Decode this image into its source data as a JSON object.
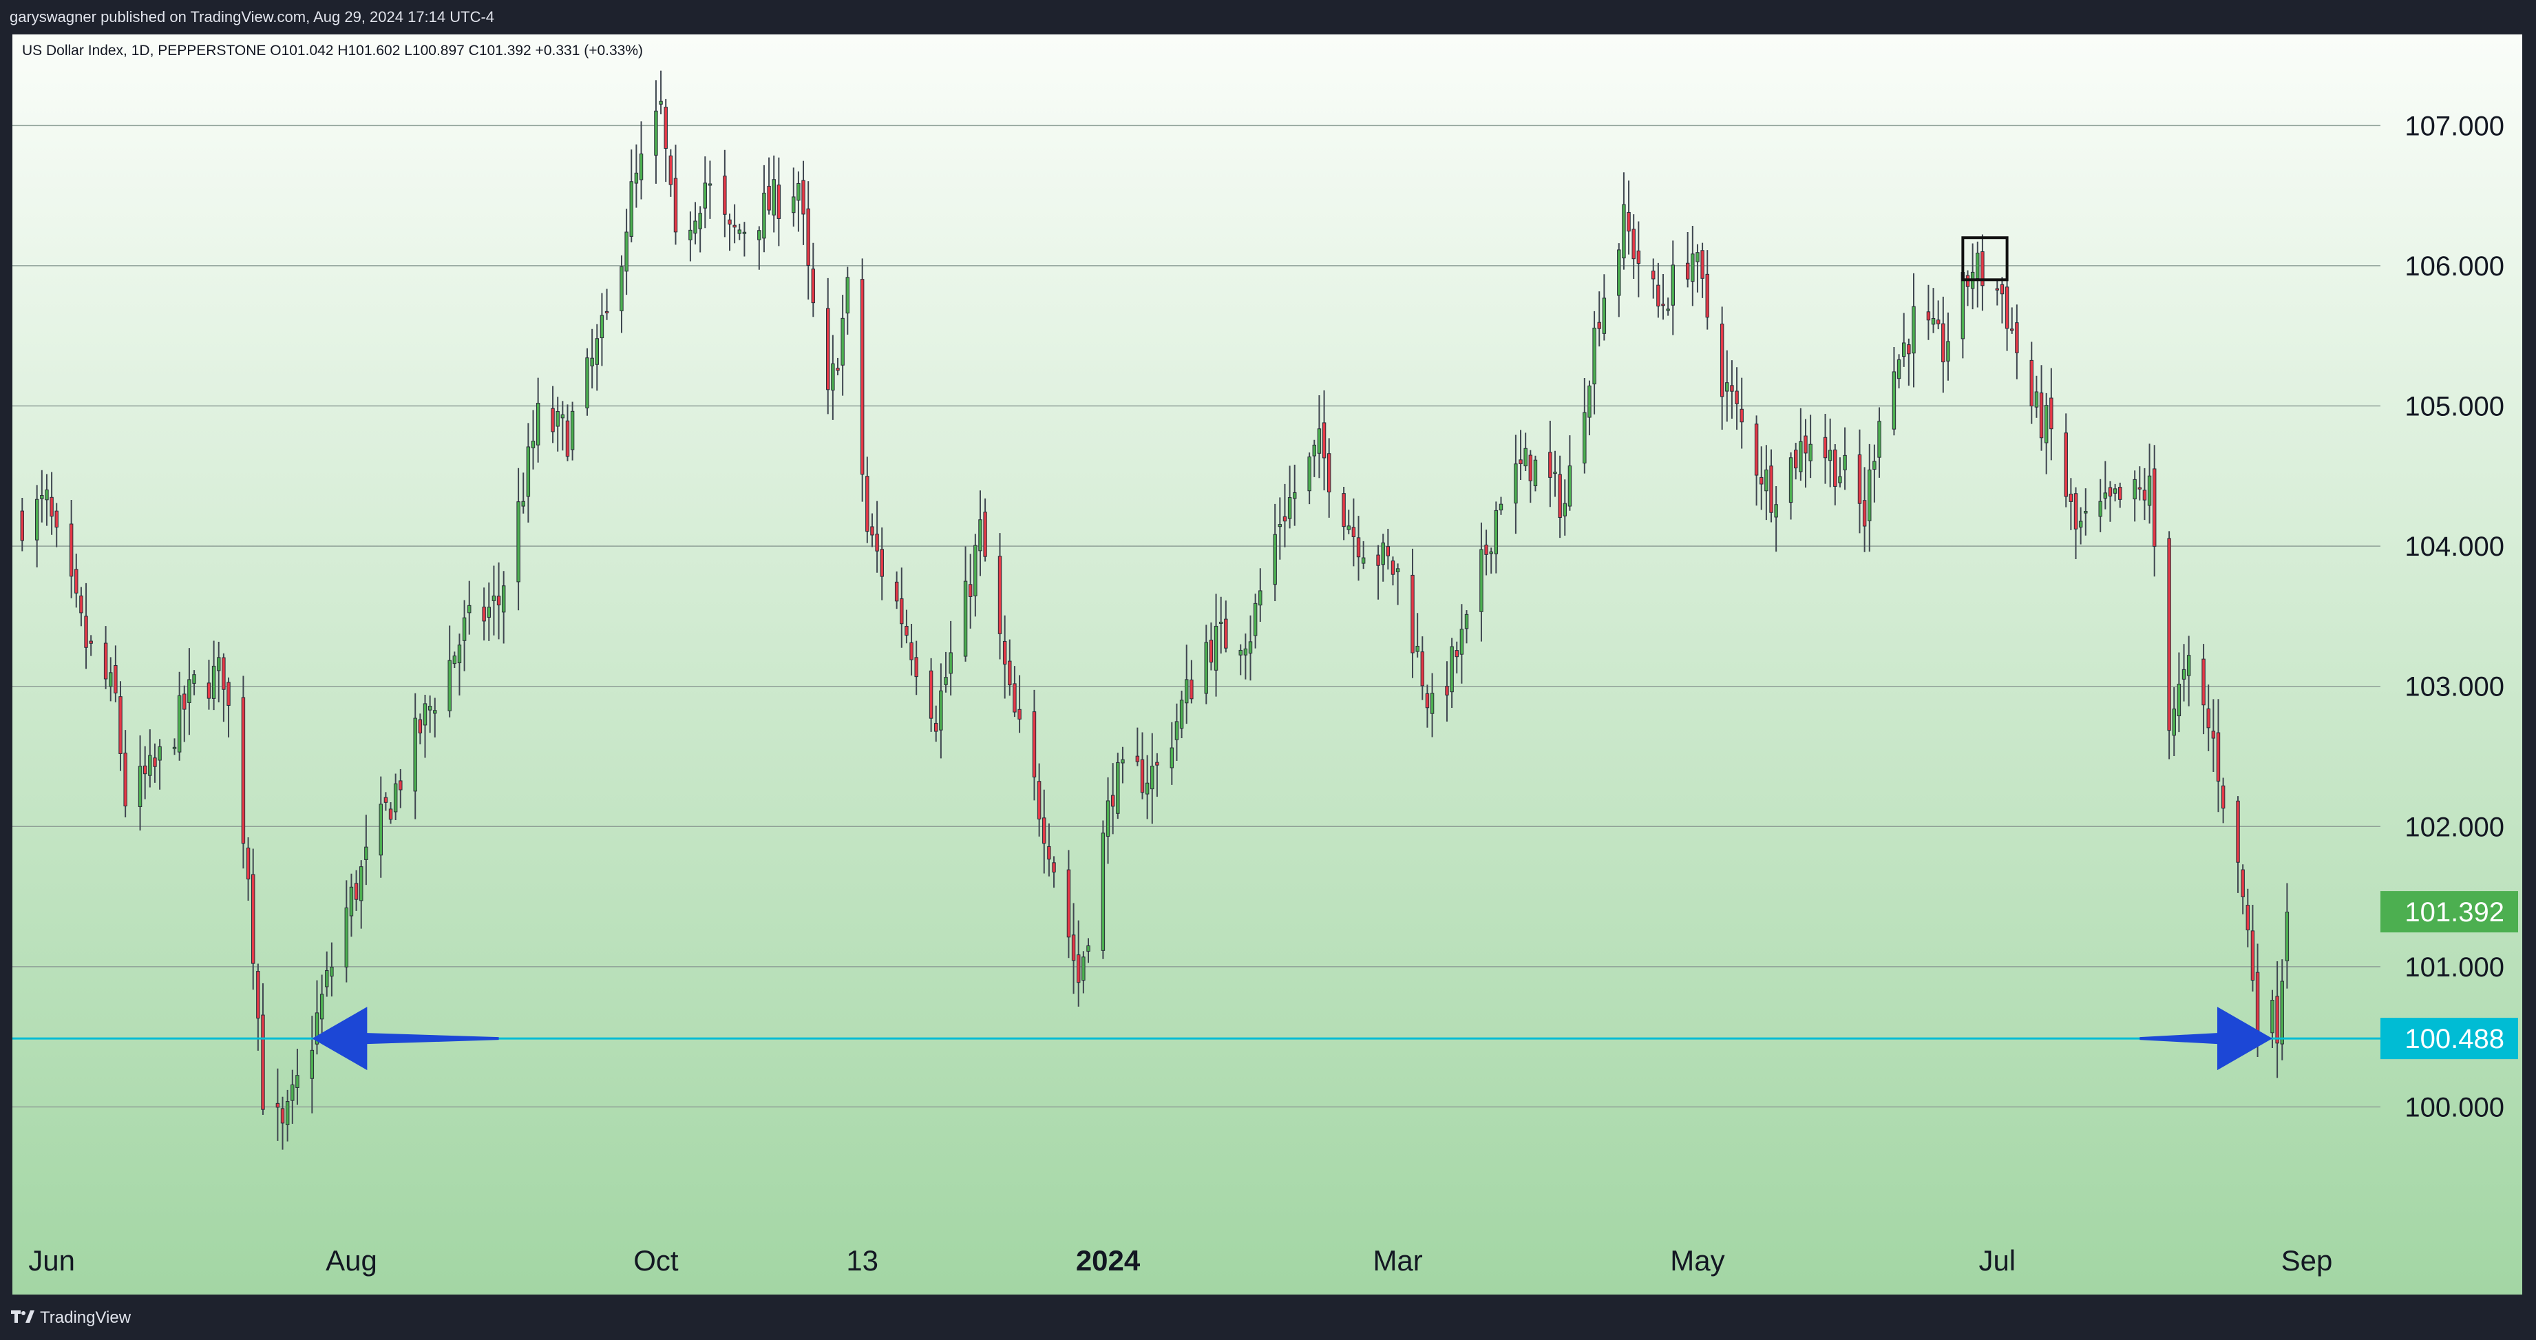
{
  "header": {
    "published": "garyswagner published on TradingView.com, Aug 29, 2024 17:14 UTC-4"
  },
  "footer": {
    "brand": "TradingView",
    "logo_icon": "tradingview-logo-icon"
  },
  "colors": {
    "up": "#4caf50",
    "down": "#e53947",
    "wick": "#3f4650",
    "level_line": "#00bcd4",
    "arrow": "#1c47d6",
    "last_price_badge": "#4caf50",
    "level_badge": "#00bcd4",
    "grid": "#8fa097"
  },
  "chart_data": {
    "type": "candlestick",
    "symbol_line": "US Dollar Index, 1D, PEPPERSTONE  O101.042  H101.602  L100.897  C101.392  +0.331 (+0.33%)",
    "y_ticks": [
      "107.000",
      "106.000",
      "105.000",
      "104.000",
      "103.000",
      "102.000",
      "101.000",
      "100.000"
    ],
    "y_tick_values": [
      107,
      106,
      105,
      104,
      103,
      102,
      101,
      100
    ],
    "ylim": [
      99.3,
      107.65
    ],
    "x_ticks": [
      {
        "label": "Jun",
        "date": "2023-06-01",
        "bold": false
      },
      {
        "label": "Aug",
        "date": "2023-08-01",
        "bold": false
      },
      {
        "label": "Oct",
        "date": "2023-10-02",
        "bold": false
      },
      {
        "label": "13",
        "date": "2023-11-13",
        "bold": false
      },
      {
        "label": "2024",
        "date": "2024-01-02",
        "bold": true
      },
      {
        "label": "Mar",
        "date": "2024-03-01",
        "bold": false
      },
      {
        "label": "May",
        "date": "2024-05-01",
        "bold": false
      },
      {
        "label": "Jul",
        "date": "2024-07-01",
        "bold": false
      },
      {
        "label": "Sep",
        "date": "2024-09-02",
        "bold": false
      }
    ],
    "last_price": {
      "label": "101.392",
      "value": 101.392
    },
    "horizontal_level": {
      "label": "100.488",
      "value": 100.488
    },
    "annotations": [
      {
        "type": "arrow",
        "direction": "left",
        "from_date": "2023-08-31",
        "to_date": "2023-07-24",
        "value": 100.488
      },
      {
        "type": "arrow",
        "direction": "right",
        "from_date": "2024-07-30",
        "to_date": "2024-08-26",
        "value": 100.488
      },
      {
        "type": "rectangle",
        "from_date": "2024-06-24",
        "to_date": "2024-07-03",
        "top": 106.2,
        "bottom": 105.9
      }
    ],
    "path_anchors": [
      [
        "2023-05-26",
        104.2
      ],
      [
        "2023-05-31",
        104.3
      ],
      [
        "2023-06-02",
        104.0
      ],
      [
        "2023-06-08",
        103.3
      ],
      [
        "2023-06-14",
        102.9
      ],
      [
        "2023-06-16",
        102.2
      ],
      [
        "2023-06-22",
        102.4
      ],
      [
        "2023-06-30",
        103.0
      ],
      [
        "2023-07-06",
        103.1
      ],
      [
        "2023-07-11",
        101.7
      ],
      [
        "2023-07-14",
        100.1
      ],
      [
        "2023-07-18",
        99.8
      ],
      [
        "2023-07-24",
        100.5
      ],
      [
        "2023-07-31",
        101.4
      ],
      [
        "2023-08-08",
        102.1
      ],
      [
        "2023-08-15",
        102.7
      ],
      [
        "2023-08-24",
        103.4
      ],
      [
        "2023-08-31",
        103.6
      ],
      [
        "2023-09-08",
        104.9
      ],
      [
        "2023-09-14",
        104.8
      ],
      [
        "2023-09-22",
        105.6
      ],
      [
        "2023-09-27",
        106.5
      ],
      [
        "2023-10-03",
        107.1
      ],
      [
        "2023-10-06",
        106.1
      ],
      [
        "2023-10-12",
        106.6
      ],
      [
        "2023-10-17",
        106.2
      ],
      [
        "2023-10-24",
        106.4
      ],
      [
        "2023-10-31",
        106.6
      ],
      [
        "2023-11-02",
        105.9
      ],
      [
        "2023-11-06",
        105.0
      ],
      [
        "2023-11-10",
        105.8
      ],
      [
        "2023-11-14",
        104.1
      ],
      [
        "2023-11-21",
        103.5
      ],
      [
        "2023-11-28",
        102.8
      ],
      [
        "2023-12-04",
        103.6
      ],
      [
        "2023-12-07",
        104.1
      ],
      [
        "2023-12-13",
        102.9
      ],
      [
        "2023-12-21",
        101.9
      ],
      [
        "2023-12-27",
        100.9
      ],
      [
        "2024-01-03",
        102.3
      ],
      [
        "2024-01-12",
        102.4
      ],
      [
        "2024-01-22",
        103.3
      ],
      [
        "2024-01-31",
        103.4
      ],
      [
        "2024-02-06",
        104.2
      ],
      [
        "2024-02-14",
        104.7
      ],
      [
        "2024-02-21",
        104.1
      ],
      [
        "2024-03-01",
        103.8
      ],
      [
        "2024-03-08",
        102.8
      ],
      [
        "2024-03-15",
        103.4
      ],
      [
        "2024-03-22",
        104.4
      ],
      [
        "2024-03-28",
        104.6
      ],
      [
        "2024-04-04",
        104.3
      ],
      [
        "2024-04-11",
        105.7
      ],
      [
        "2024-04-16",
        106.3
      ],
      [
        "2024-04-23",
        105.7
      ],
      [
        "2024-04-30",
        106.1
      ],
      [
        "2024-05-06",
        105.2
      ],
      [
        "2024-05-13",
        104.6
      ],
      [
        "2024-05-16",
        104.4
      ],
      [
        "2024-05-24",
        104.8
      ],
      [
        "2024-05-31",
        104.5
      ],
      [
        "2024-06-04",
        104.2
      ],
      [
        "2024-06-07",
        105.0
      ],
      [
        "2024-06-14",
        105.6
      ],
      [
        "2024-06-20",
        105.4
      ],
      [
        "2024-06-26",
        106.0
      ],
      [
        "2024-07-02",
        105.8
      ],
      [
        "2024-07-08",
        105.0
      ],
      [
        "2024-07-12",
        104.8
      ],
      [
        "2024-07-17",
        104.1
      ],
      [
        "2024-07-25",
        104.3
      ],
      [
        "2024-08-01",
        104.4
      ],
      [
        "2024-08-05",
        102.8
      ],
      [
        "2024-08-09",
        103.1
      ],
      [
        "2024-08-14",
        102.6
      ],
      [
        "2024-08-20",
        101.5
      ],
      [
        "2024-08-23",
        100.7
      ],
      [
        "2024-08-27",
        100.6
      ],
      [
        "2024-08-29",
        101.39
      ]
    ]
  }
}
